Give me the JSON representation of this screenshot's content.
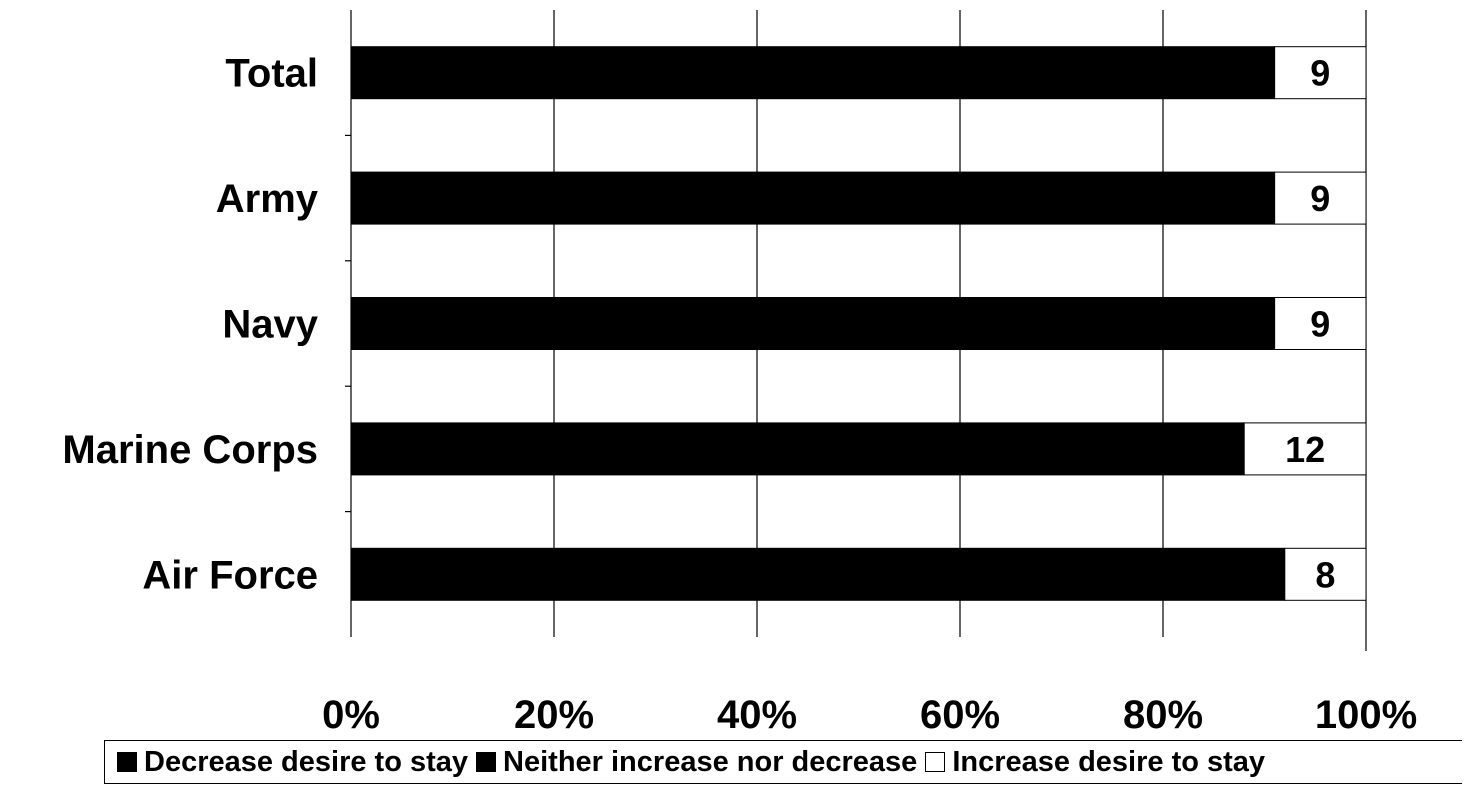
{
  "chart_data": {
    "type": "bar",
    "orientation": "horizontal",
    "stacked": true,
    "categories": [
      "Total",
      "Army",
      "Navy",
      "Marine Corps",
      "Air Force"
    ],
    "series": [
      {
        "name": "Decrease desire to stay",
        "values": [
          0,
          0,
          0,
          0,
          0
        ],
        "color": "#000000"
      },
      {
        "name": "Neither increase nor decrease",
        "values": [
          91,
          91,
          91,
          88,
          92
        ],
        "color": "#000000"
      },
      {
        "name": "Increase desire to stay",
        "values": [
          9,
          9,
          9,
          12,
          8
        ],
        "color": "#ffffff"
      }
    ],
    "data_labels": [
      "9",
      "9",
      "9",
      "12",
      "8"
    ],
    "xlim": [
      0,
      100
    ],
    "x_ticks": [
      "0%",
      "20%",
      "40%",
      "60%",
      "80%",
      "100%"
    ],
    "grid": true,
    "legend_position": "bottom"
  }
}
